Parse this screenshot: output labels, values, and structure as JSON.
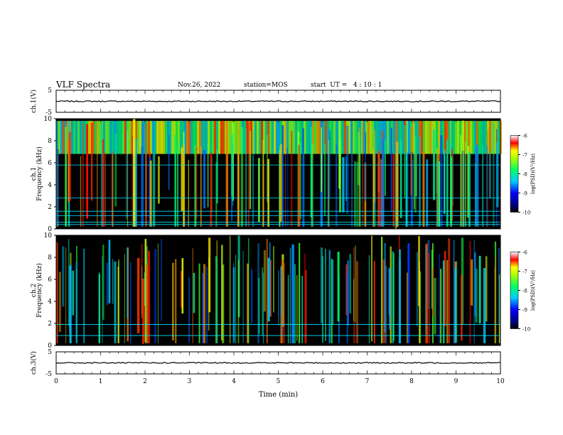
{
  "header": {
    "title": "VLF Spectra",
    "date": "Nov.26, 2022",
    "station": "station=MOS",
    "start": "start  UT =   4 : 10 : 1"
  },
  "colors": {
    "background": "#000000",
    "grid_line": "#00e5ff",
    "trace": "#000000"
  },
  "chart_data": [
    {
      "type": "line",
      "name": "ch1-waveform",
      "ylabel": "ch.1(V)",
      "ylim": [
        -5,
        5
      ],
      "yticks": [
        "5",
        "-5"
      ],
      "x": [
        0,
        10
      ],
      "y": [
        0,
        0
      ]
    },
    {
      "type": "heatmap",
      "name": "ch1-spectrogram",
      "ylabel": "ch.1\nFrequency  (kHz)",
      "ylim": [
        0,
        10
      ],
      "yticks": [
        "0",
        "2",
        "4",
        "6",
        "8",
        "10"
      ],
      "xlim": [
        0,
        10
      ],
      "colorbar": {
        "label": "log(PSD)(V²/Hz)",
        "range": [
          -10,
          -6
        ],
        "ticks": [
          "-6",
          "-7",
          "-8",
          "-9",
          "-10"
        ]
      },
      "hlines_khz": [
        0.4,
        0.6,
        1.2,
        1.6,
        2.8,
        5.8
      ]
    },
    {
      "type": "heatmap",
      "name": "ch2-spectrogram",
      "ylabel": "ch.2\nFrequency  (kHz)",
      "ylim": [
        0,
        10
      ],
      "yticks": [
        "0",
        "2",
        "4",
        "6",
        "8",
        "10"
      ],
      "xlim": [
        0,
        10
      ],
      "colorbar": {
        "label": "log(PSD)(V²/Hz)",
        "range": [
          -10,
          -6
        ],
        "ticks": [
          "-6",
          "-7",
          "-8",
          "-9",
          "-10"
        ]
      },
      "hlines_khz": [
        0.9,
        1.9
      ]
    },
    {
      "type": "line",
      "name": "ch3-waveform",
      "ylabel": "ch.3(V)",
      "ylim": [
        -5,
        5
      ],
      "yticks": [
        "5",
        "-5"
      ],
      "x": [
        0,
        10
      ],
      "y": [
        0,
        0
      ]
    }
  ],
  "xaxis": {
    "label": "Time  (min)",
    "ticks": [
      "0",
      "1",
      "2",
      "3",
      "4",
      "5",
      "6",
      "7",
      "8",
      "9",
      "10"
    ]
  }
}
